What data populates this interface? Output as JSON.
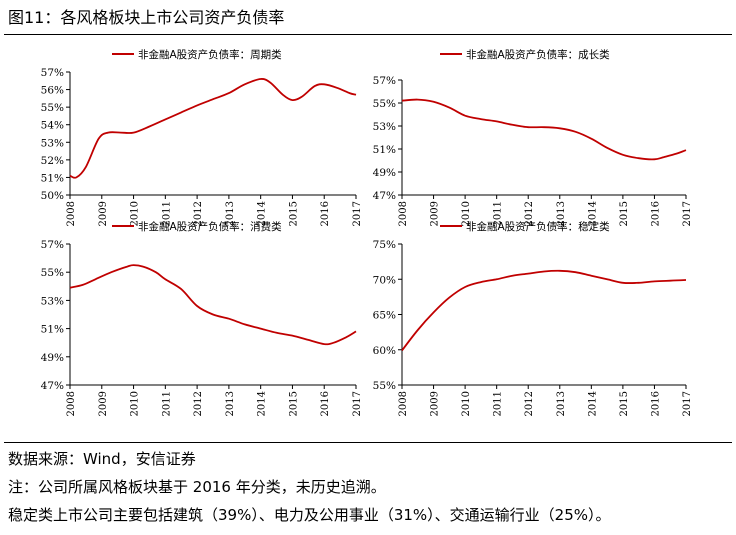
{
  "figure": {
    "title": "图11：各风格板块上市公司资产负债率",
    "source": "数据来源：Wind，安信证券",
    "note": "注：公司所属风格板块基于 2016 年分类，未历史追溯。",
    "composition": "稳定类上市公司主要包括建筑（39%）、电力及公用事业（31%）、交通运输行业（25%）。"
  },
  "colors": {
    "line": "#c00000",
    "axis": "#000000"
  },
  "chart_data": [
    {
      "type": "line",
      "legend": "非金融A股资产负债率：周期类",
      "ylim": [
        50,
        57
      ],
      "yticks": [
        50,
        51,
        52,
        53,
        54,
        55,
        56,
        57
      ],
      "ytick_labels": [
        "50%",
        "51%",
        "52%",
        "53%",
        "54%",
        "55%",
        "56%",
        "57%"
      ],
      "xticks": [
        "2008",
        "2009",
        "2010",
        "2011",
        "2012",
        "2013",
        "2014",
        "2015",
        "2016",
        "2017"
      ],
      "x": [
        2008.0,
        2008.2,
        2008.5,
        2008.9,
        2009.2,
        2009.6,
        2010.0,
        2010.5,
        2011.0,
        2011.5,
        2012.0,
        2012.5,
        2013.0,
        2013.5,
        2014.0,
        2014.3,
        2014.7,
        2015.0,
        2015.3,
        2015.7,
        2016.0,
        2016.4,
        2016.8,
        2017.0
      ],
      "values": [
        51.1,
        51.0,
        51.6,
        53.2,
        53.55,
        53.55,
        53.55,
        53.9,
        54.3,
        54.7,
        55.1,
        55.45,
        55.8,
        56.3,
        56.6,
        56.4,
        55.7,
        55.4,
        55.6,
        56.2,
        56.3,
        56.1,
        55.8,
        55.7
      ]
    },
    {
      "type": "line",
      "legend": "非金融A股资产负债率：成长类",
      "ylim": [
        47,
        57
      ],
      "yticks": [
        47,
        49,
        51,
        53,
        55,
        57
      ],
      "ytick_labels": [
        "47%",
        "49%",
        "51%",
        "53%",
        "55%",
        "57%"
      ],
      "xticks": [
        "2008",
        "2009",
        "2010",
        "2011",
        "2012",
        "2013",
        "2014",
        "2015",
        "2016",
        "2017"
      ],
      "x": [
        2008.0,
        2008.5,
        2009.0,
        2009.5,
        2010.0,
        2010.5,
        2011.0,
        2011.5,
        2012.0,
        2012.5,
        2013.0,
        2013.5,
        2014.0,
        2014.5,
        2015.0,
        2015.5,
        2016.0,
        2016.3,
        2016.7,
        2017.0
      ],
      "values": [
        55.2,
        55.3,
        55.1,
        54.6,
        53.9,
        53.6,
        53.4,
        53.1,
        52.9,
        52.9,
        52.8,
        52.5,
        51.9,
        51.1,
        50.5,
        50.2,
        50.1,
        50.3,
        50.6,
        50.9
      ]
    },
    {
      "type": "line",
      "legend": "非金融A股资产负债率：消费类",
      "ylim": [
        47,
        57
      ],
      "yticks": [
        47,
        49,
        51,
        53,
        55,
        57
      ],
      "ytick_labels": [
        "47%",
        "49%",
        "51%",
        "53%",
        "55%",
        "57%"
      ],
      "xticks": [
        "2008",
        "2009",
        "2010",
        "2011",
        "2012",
        "2013",
        "2014",
        "2015",
        "2016",
        "2017"
      ],
      "x": [
        2008.0,
        2008.4,
        2008.8,
        2009.3,
        2009.8,
        2010.0,
        2010.3,
        2010.7,
        2011.0,
        2011.5,
        2012.0,
        2012.5,
        2013.0,
        2013.5,
        2014.0,
        2014.5,
        2015.0,
        2015.5,
        2016.0,
        2016.3,
        2016.7,
        2017.0
      ],
      "values": [
        53.9,
        54.1,
        54.5,
        55.0,
        55.4,
        55.5,
        55.4,
        55.0,
        54.5,
        53.8,
        52.6,
        52.0,
        51.7,
        51.3,
        51.0,
        50.7,
        50.5,
        50.2,
        49.9,
        50.0,
        50.4,
        50.8
      ]
    },
    {
      "type": "line",
      "legend": "非金融A股资产负债率：稳定类",
      "ylim": [
        55,
        75
      ],
      "yticks": [
        55,
        60,
        65,
        70,
        75
      ],
      "ytick_labels": [
        "55%",
        "60%",
        "65%",
        "70%",
        "75%"
      ],
      "xticks": [
        "2008",
        "2009",
        "2010",
        "2011",
        "2012",
        "2013",
        "2014",
        "2015",
        "2016",
        "2017"
      ],
      "x": [
        2008.0,
        2008.5,
        2009.0,
        2009.5,
        2010.0,
        2010.5,
        2011.0,
        2011.5,
        2012.0,
        2012.5,
        2013.0,
        2013.5,
        2014.0,
        2014.5,
        2015.0,
        2015.5,
        2016.0,
        2016.5,
        2017.0
      ],
      "values": [
        59.9,
        62.8,
        65.3,
        67.4,
        68.9,
        69.6,
        70.0,
        70.5,
        70.8,
        71.1,
        71.2,
        71.0,
        70.5,
        70.0,
        69.5,
        69.5,
        69.7,
        69.8,
        69.9
      ]
    }
  ]
}
